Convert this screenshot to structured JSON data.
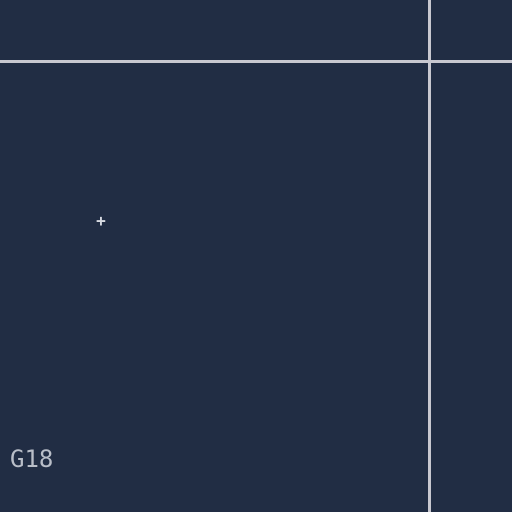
{
  "canvas": {
    "background": "#212d44",
    "line_color": "#c8c8d0",
    "marker": {
      "icon": "crosshair-icon",
      "glyph": "+"
    },
    "cell_label": "G18"
  }
}
